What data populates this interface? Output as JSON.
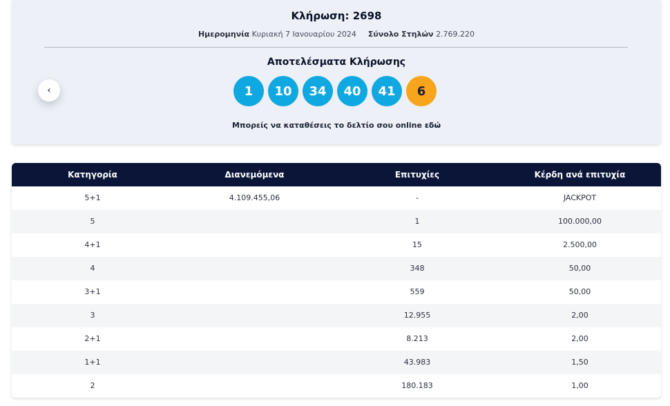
{
  "draw": {
    "title": "Κλήρωση: 2698",
    "date_label": "Ημερομηνία",
    "date_value": "Κυριακή 7 Ιανουαρίου 2024",
    "columns_label": "Σύνολο Στηλών",
    "columns_value": "2.769.220"
  },
  "results": {
    "title": "Αποτελέσματα Κλήρωσης",
    "numbers": [
      "1",
      "10",
      "34",
      "40",
      "41"
    ],
    "joker": "6",
    "prev_icon": "chevron-left-icon"
  },
  "online": {
    "text": "Μπορείς να καταθέσεις το δελτίο σου online",
    "link": "εδώ"
  },
  "table": {
    "headers": [
      "Κατηγορία",
      "Διανεμόμενα",
      "Επιτυχίες",
      "Κέρδη ανά επιτυχία"
    ],
    "rows": [
      [
        "5+1",
        "4.109.455,06",
        "-",
        "JACKPOT"
      ],
      [
        "5",
        "",
        "1",
        "100.000,00"
      ],
      [
        "4+1",
        "",
        "15",
        "2.500,00"
      ],
      [
        "4",
        "",
        "348",
        "50,00"
      ],
      [
        "3+1",
        "",
        "559",
        "50,00"
      ],
      [
        "3",
        "",
        "12.955",
        "2,00"
      ],
      [
        "2+1",
        "",
        "8.213",
        "2,00"
      ],
      [
        "1+1",
        "",
        "43.983",
        "1,50"
      ],
      [
        "2",
        "",
        "180.183",
        "1,00"
      ]
    ]
  },
  "colors": {
    "ball": "#10a8e0",
    "joker": "#f7a51c",
    "header": "#0a1538"
  }
}
